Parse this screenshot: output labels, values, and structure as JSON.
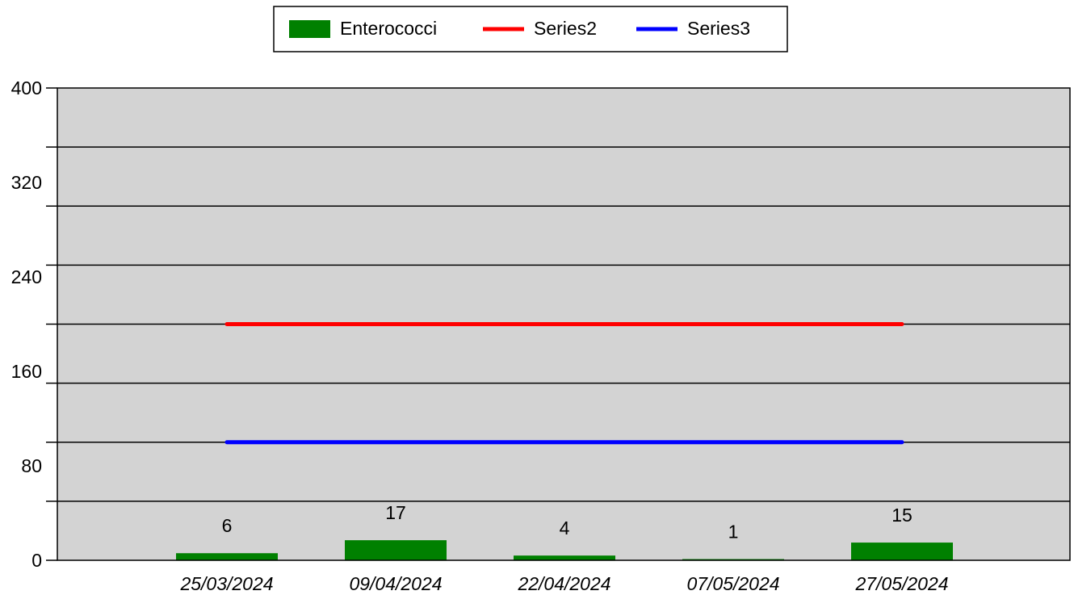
{
  "chart_data": {
    "type": "bar",
    "categories": [
      "25/03/2024",
      "09/04/2024",
      "22/04/2024",
      "07/05/2024",
      "27/05/2024"
    ],
    "series": [
      {
        "name": "Enterococci",
        "kind": "bar",
        "color": "#008000",
        "values": [
          6,
          17,
          4,
          1,
          15
        ]
      },
      {
        "name": "Series2",
        "kind": "line",
        "color": "#ff0000",
        "values": [
          200,
          200,
          200,
          200,
          200
        ]
      },
      {
        "name": "Series3",
        "kind": "line",
        "color": "#0000ff",
        "values": [
          100,
          100,
          100,
          100,
          100
        ]
      }
    ],
    "data_labels": [
      "6",
      "17",
      "4",
      "1",
      "15"
    ],
    "y_ticks": [
      0,
      80,
      160,
      240,
      320,
      400
    ],
    "ylim": [
      0,
      400
    ],
    "grid_step": 50,
    "grid": true,
    "legend_position": "top-center",
    "plot_background": "#d3d3d3",
    "title": "",
    "xlabel": "",
    "ylabel": ""
  }
}
